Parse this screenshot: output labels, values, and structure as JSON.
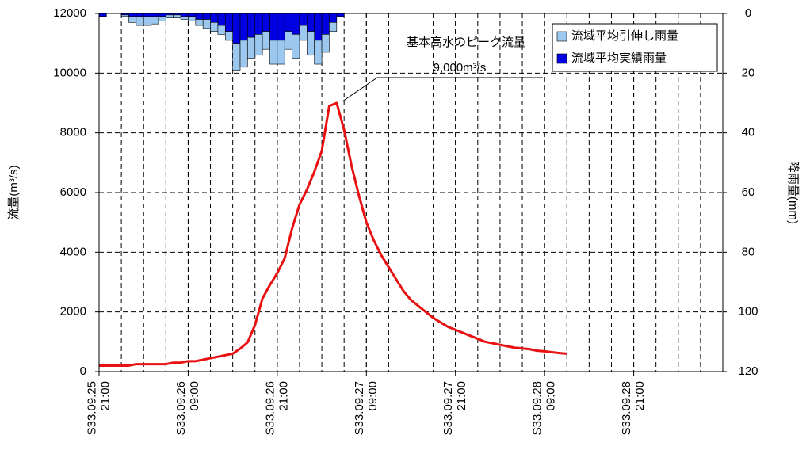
{
  "chart_data": {
    "type": "line",
    "ylabel": "流量(m³/s)",
    "y2label": "降雨量(mm)",
    "annotations": [
      "基本高水のピーク流量",
      "9,000m³/s"
    ],
    "xlim": [
      0,
      84
    ],
    "xticks": [
      {
        "value": 0,
        "label": "S33.09.25 21:00"
      },
      {
        "value": 12,
        "label": "S33.09.26 09:00"
      },
      {
        "value": 24,
        "label": "S33.09.26 21:00"
      },
      {
        "value": 36,
        "label": "S33.09.27 09:00"
      },
      {
        "value": 48,
        "label": "S33.09.27 21:00"
      },
      {
        "value": 60,
        "label": "S33.09.28 09:00"
      },
      {
        "value": 72,
        "label": "S33.09.28 21:00"
      }
    ],
    "xgrid": [
      3,
      6,
      9,
      12,
      15,
      18,
      21,
      24,
      27,
      30,
      33,
      36,
      39,
      42,
      45,
      48,
      51,
      54,
      57,
      60,
      63,
      66,
      69,
      72,
      75,
      78,
      81
    ],
    "ylim": [
      0,
      12000
    ],
    "yticks": [
      0,
      2000,
      4000,
      6000,
      8000,
      10000,
      12000
    ],
    "y2lim": [
      0,
      120
    ],
    "y2ticks": [
      0,
      20,
      40,
      60,
      80,
      100,
      120
    ],
    "y2_inverted": true,
    "grid": true,
    "legend": "upper right",
    "series": [
      {
        "type": "line",
        "color": "#e81010",
        "x": [
          0,
          1,
          2,
          3,
          4,
          5,
          6,
          7,
          8,
          9,
          10,
          11,
          12,
          13,
          14,
          15,
          16,
          17,
          18,
          19,
          20,
          21,
          22,
          23,
          24,
          25,
          26,
          27,
          28,
          29,
          30,
          31,
          32,
          33,
          34,
          35,
          36,
          37,
          38,
          39,
          40,
          41,
          42,
          43,
          44,
          45,
          46,
          47,
          48,
          49,
          50,
          51,
          52,
          53,
          54,
          55,
          56,
          57,
          58,
          59,
          60,
          61,
          62,
          63
        ],
        "values": [
          200,
          200,
          200,
          200,
          200,
          250,
          250,
          250,
          250,
          250,
          300,
          300,
          350,
          350,
          400,
          450,
          500,
          550,
          600,
          770,
          980,
          1560,
          2450,
          2900,
          3300,
          3800,
          4800,
          5600,
          6100,
          6700,
          7400,
          8900,
          9000,
          8100,
          6900,
          5900,
          5000,
          4400,
          3900,
          3500,
          3100,
          2700,
          2400,
          2200,
          2000,
          1800,
          1650,
          1500,
          1400,
          1300,
          1200,
          1100,
          1000,
          950,
          900,
          850,
          800,
          780,
          750,
          700,
          680,
          650,
          620,
          600
        ]
      },
      {
        "type": "bar",
        "axis": "y2",
        "name": "流域平均実績雨量",
        "color": "#0000e0",
        "x": [
          0,
          1,
          2,
          3,
          4,
          5,
          6,
          7,
          8,
          9,
          10,
          11,
          12,
          13,
          14,
          15,
          16,
          17,
          18,
          19,
          20,
          21,
          22,
          23,
          24,
          25,
          26,
          27,
          28,
          29,
          30,
          31,
          32
        ],
        "values": [
          1,
          0,
          0,
          0.5,
          1,
          1,
          1,
          1,
          1,
          0.5,
          0.5,
          1,
          1,
          2,
          2,
          3,
          4,
          6,
          10,
          9,
          8,
          7,
          6,
          9,
          9,
          6,
          7,
          4,
          6,
          9,
          7,
          3,
          1
        ]
      },
      {
        "type": "bar",
        "axis": "y2",
        "name": "流域平均引伸し雨量",
        "color": "#9cc8f0",
        "x": [
          0,
          1,
          2,
          3,
          4,
          5,
          6,
          7,
          8,
          9,
          10,
          11,
          12,
          13,
          14,
          15,
          16,
          17,
          18,
          19,
          20,
          21,
          22,
          23,
          24,
          25,
          26,
          27,
          28,
          29,
          30,
          31,
          32
        ],
        "values": [
          0,
          0,
          0,
          0.5,
          2,
          3,
          3,
          2.5,
          1.5,
          1,
          1,
          1,
          1.5,
          2,
          3,
          3,
          3,
          3,
          9,
          9,
          7,
          7,
          6,
          8,
          8,
          6,
          8,
          5,
          8,
          8,
          6,
          3,
          0
        ]
      }
    ]
  }
}
